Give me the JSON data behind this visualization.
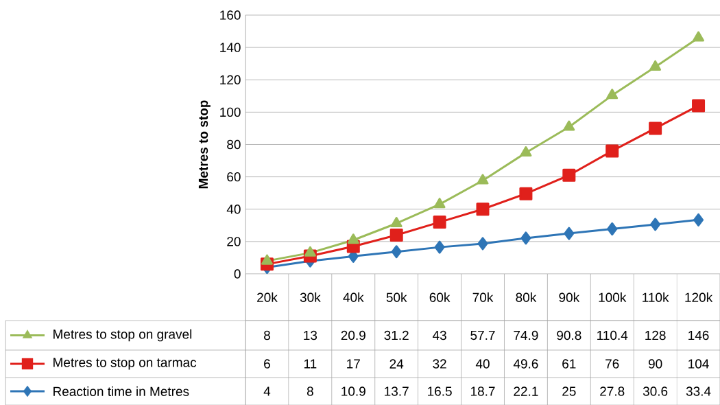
{
  "chart_data": {
    "type": "line",
    "ylabel": "Metres to stop",
    "categories": [
      "20k",
      "30k",
      "40k",
      "50k",
      "60k",
      "70k",
      "80k",
      "90k",
      "100k",
      "110k",
      "120k"
    ],
    "series": [
      {
        "name": "Metres to stop on gravel",
        "color": "#9bbb59",
        "marker": "triangle",
        "values": [
          8,
          13,
          20.9,
          31.2,
          43,
          57.7,
          74.9,
          90.8,
          110.4,
          128,
          146
        ]
      },
      {
        "name": "Metres to stop on tarmac",
        "color": "#e0201b",
        "marker": "square",
        "values": [
          6,
          11,
          17,
          24,
          32,
          40,
          49.6,
          61,
          76,
          90,
          104
        ]
      },
      {
        "name": "Reaction time in Metres",
        "color": "#2e75b6",
        "marker": "diamond",
        "values": [
          4,
          8,
          10.9,
          13.7,
          16.5,
          18.7,
          22.1,
          25,
          27.8,
          30.6,
          33.4
        ]
      }
    ],
    "ylim": [
      0,
      160
    ],
    "yticks": [
      0,
      20,
      40,
      60,
      80,
      100,
      120,
      140,
      160
    ],
    "grid": true,
    "legend": "bottom left",
    "data_labels": true,
    "line_style": "solid"
  }
}
